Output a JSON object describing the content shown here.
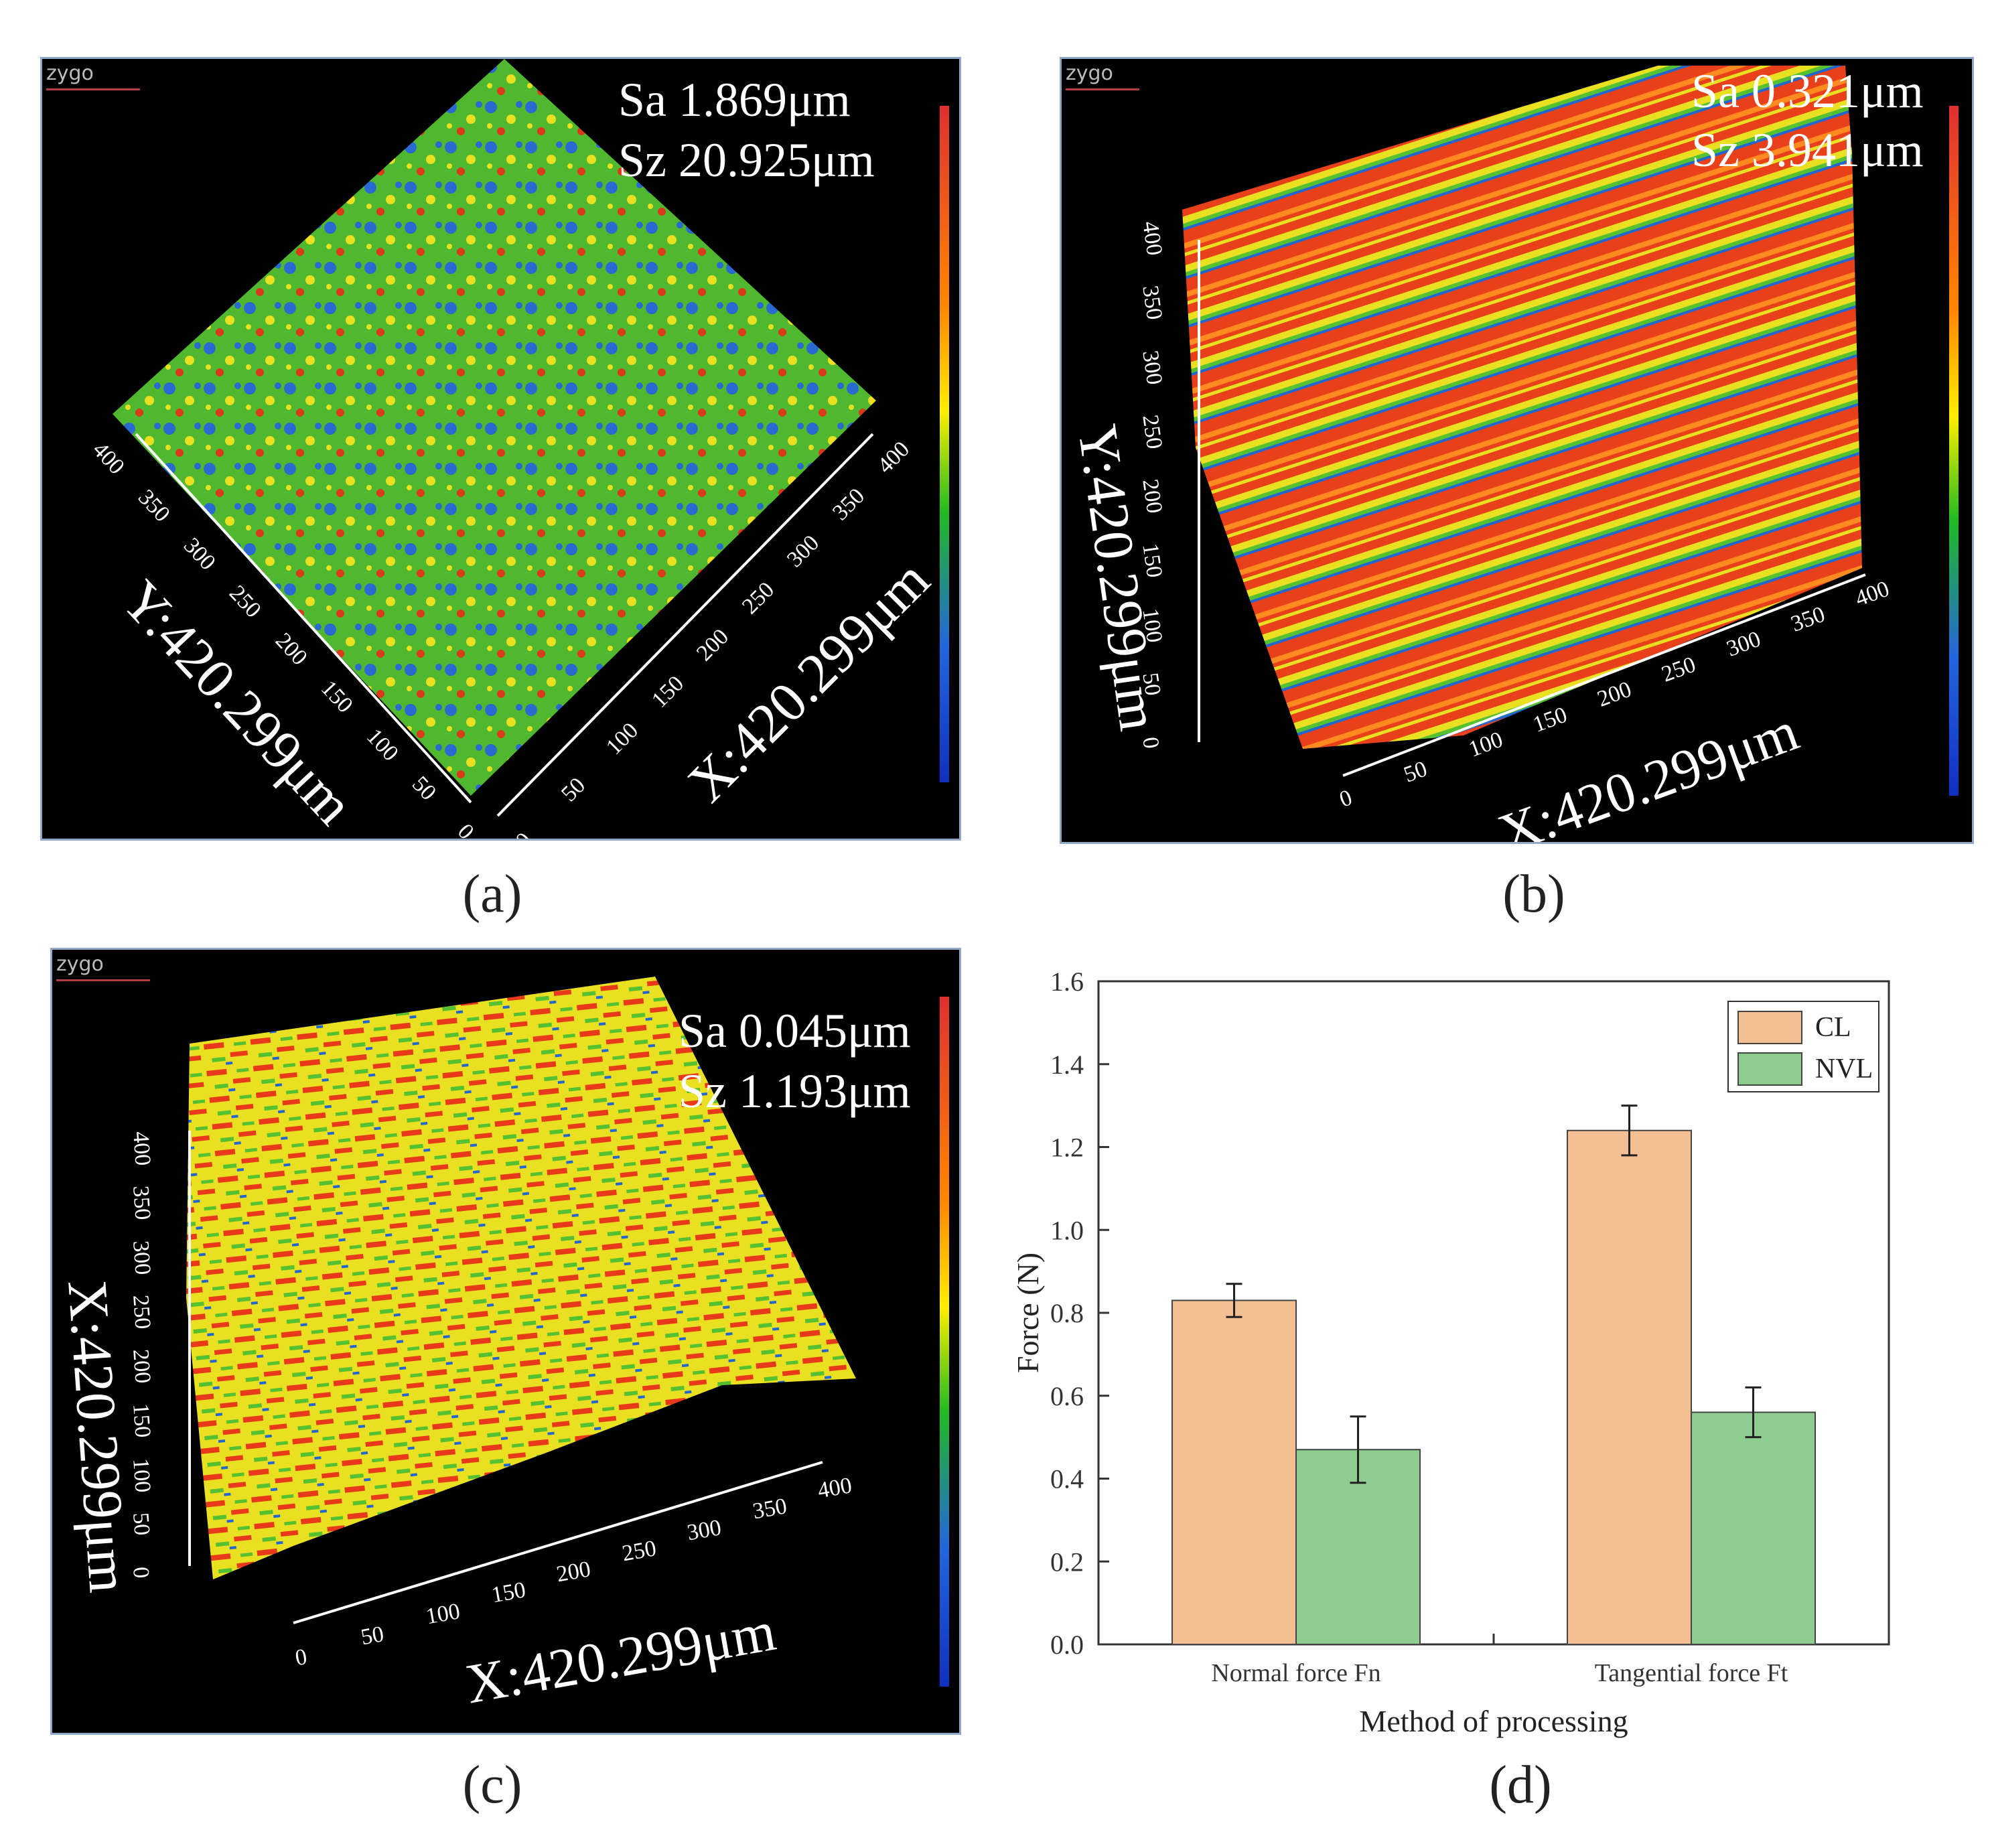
{
  "panels": {
    "a": {
      "caption": "(a)",
      "logo": "zygo",
      "sa": "Sa 1.869μm",
      "sz": "Sz 20.925μm",
      "x_label": "X:420.299μm",
      "y_label": "Y:420.299μm",
      "ticks": [
        "0",
        "50",
        "100",
        "150",
        "200",
        "250",
        "300",
        "350",
        "400"
      ]
    },
    "b": {
      "caption": "(b)",
      "logo": "zygo",
      "sa": "Sa 0.321μm",
      "sz": "Sz 3.941μm",
      "x_label": "X:420.299μm",
      "y_label": "Y:420.299μm",
      "ticks": [
        "0",
        "50",
        "100",
        "150",
        "200",
        "250",
        "300",
        "350",
        "400"
      ]
    },
    "c": {
      "caption": "(c)",
      "logo": "zygo",
      "sa": "Sa 0.045μm",
      "sz": "Sz 1.193μm",
      "x_label": "X:420.299μm",
      "y_label": "X:420.299μm",
      "ticks": [
        "0",
        "50",
        "100",
        "150",
        "200",
        "250",
        "300",
        "350",
        "400"
      ]
    },
    "d": {
      "caption": "(d)"
    }
  },
  "colors": {
    "cl": "#f4bf92",
    "nvl": "#8fcc8f",
    "surface_green": "#55c030",
    "surface_red": "#e83a1a",
    "surface_blue": "#2266d0",
    "surface_yellow": "#e8e020"
  },
  "chart_data": {
    "type": "bar",
    "title": "",
    "xlabel": "Method of processing",
    "ylabel": "Force (N)",
    "ylim": [
      0,
      1.6
    ],
    "yticks": [
      "0.0",
      "0.2",
      "0.4",
      "0.6",
      "0.8",
      "1.0",
      "1.2",
      "1.4",
      "1.6"
    ],
    "categories": [
      "Normal force Fn",
      "Tangential force Ft"
    ],
    "series": [
      {
        "name": "CL",
        "values": [
          0.83,
          1.24
        ],
        "errors": [
          0.04,
          0.06
        ]
      },
      {
        "name": "NVL",
        "values": [
          0.47,
          0.56
        ],
        "errors": [
          0.08,
          0.06
        ]
      }
    ],
    "legend": "top-right"
  }
}
